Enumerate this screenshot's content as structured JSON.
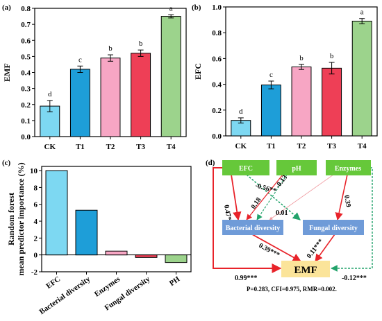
{
  "panels": [
    {
      "label": "(a)",
      "chart_data": {
        "type": "bar",
        "ylabel": "EMF",
        "ylim": [
          0.0,
          0.8
        ],
        "yticks": [
          "0.0",
          "0.1",
          "0.2",
          "0.3",
          "0.4",
          "0.5",
          "0.6",
          "0.7",
          "0.8"
        ],
        "categories": [
          "CK",
          "T1",
          "T2",
          "T3",
          "T4"
        ],
        "values": [
          0.19,
          0.42,
          0.49,
          0.52,
          0.75
        ],
        "errors": [
          0.035,
          0.02,
          0.02,
          0.02,
          0.01
        ],
        "letters": [
          "d",
          "c",
          "b",
          "b",
          "a"
        ],
        "colors": [
          "#7dd8f2",
          "#1e9ed8",
          "#f7a6c4",
          "#ee3f56",
          "#9cd38c"
        ]
      }
    },
    {
      "label": "(b)",
      "chart_data": {
        "type": "bar",
        "ylabel": "EFC",
        "ylim": [
          0.0,
          1.0
        ],
        "yticks": [
          "0.0",
          "0.2",
          "0.4",
          "0.6",
          "0.8",
          "1.0"
        ],
        "categories": [
          "CK",
          "T1",
          "T2",
          "T3",
          "T4"
        ],
        "values": [
          0.12,
          0.395,
          0.535,
          0.525,
          0.89
        ],
        "errors": [
          0.02,
          0.03,
          0.02,
          0.045,
          0.02
        ],
        "letters": [
          "d",
          "c",
          "b",
          "b",
          "a"
        ],
        "colors": [
          "#7dd8f2",
          "#1e9ed8",
          "#f7a6c4",
          "#ee3f56",
          "#9cd38c"
        ]
      }
    },
    {
      "label": "(c)",
      "chart_data": {
        "type": "bar",
        "ylabel": "Random forest\nmean predictor importance (%)",
        "ylim": [
          -2,
          10.5
        ],
        "yticks": [
          "-2",
          "0",
          "2",
          "4",
          "6",
          "8",
          "10"
        ],
        "categories": [
          "EFC",
          "Bacterial diversity",
          "Enzymes",
          "Fungal diversity",
          "PH"
        ],
        "values": [
          10.0,
          5.3,
          0.45,
          -0.3,
          -0.9
        ],
        "colors": [
          "#7dd8f2",
          "#1e9ed8",
          "#f7a6c4",
          "#ee3f56",
          "#9cd38c"
        ]
      }
    }
  ],
  "diagram": {
    "label": "(d)",
    "nodes": {
      "efc": "EFC",
      "ph": "pH",
      "enzymes": "Enzymes",
      "bacterial": "Bacterial diversity",
      "fungal": "Fungal diversity",
      "emf": "EMF"
    },
    "paths": {
      "efc_fungal": "-0.56**",
      "ph_bacterial": "-0.13",
      "efc_bacterial": "0.47*",
      "ph_bacterial_b": "0.18",
      "enzymes_bacterial": "0.01",
      "enzymes_fungal": "0.39",
      "bacterial_emf": "0.39***",
      "fungal_emf": "0.11***",
      "efc_emf": "0.99***",
      "enzymes_emf": "-0.12***"
    },
    "fit": "P=0.283, CFI=0.975, RMR=0.002.",
    "colors": {
      "green_box": "#66c83a",
      "blue_box": "#6f9bd8",
      "emf_box": "#fbe49a",
      "positive": "#e8232a",
      "negative": "#22a36b"
    }
  }
}
